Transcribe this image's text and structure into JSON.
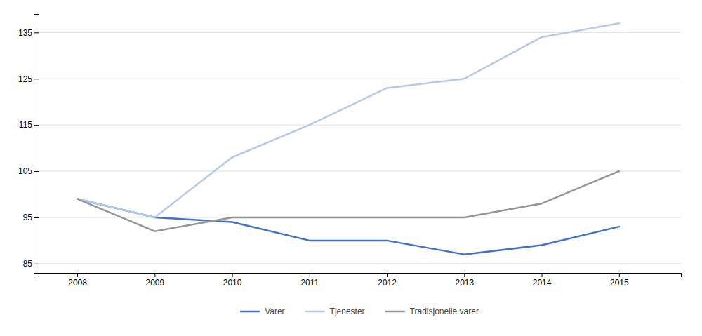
{
  "chart_data": {
    "type": "line",
    "x": [
      2008,
      2009,
      2010,
      2011,
      2012,
      2013,
      2014,
      2015
    ],
    "xlim": [
      2007.5,
      2015.8
    ],
    "xticks": [
      2008,
      2009,
      2010,
      2011,
      2012,
      2013,
      2014,
      2015
    ],
    "ylim": [
      83,
      139
    ],
    "yticks": [
      85,
      95,
      105,
      115,
      125,
      135
    ],
    "grid": "y",
    "legend": "bottom",
    "series": [
      {
        "name": "Varer",
        "color": "#4472c4",
        "values": [
          99,
          95,
          94,
          90,
          90,
          87,
          89,
          93
        ]
      },
      {
        "name": "Tjenester",
        "color": "#b8c8e8",
        "values": [
          99,
          95,
          108,
          115,
          123,
          125,
          134,
          137
        ]
      },
      {
        "name": "Tradisjonelle varer",
        "color": "#959595",
        "values": [
          99,
          92,
          95,
          95,
          95,
          95,
          98,
          105
        ]
      }
    ]
  }
}
